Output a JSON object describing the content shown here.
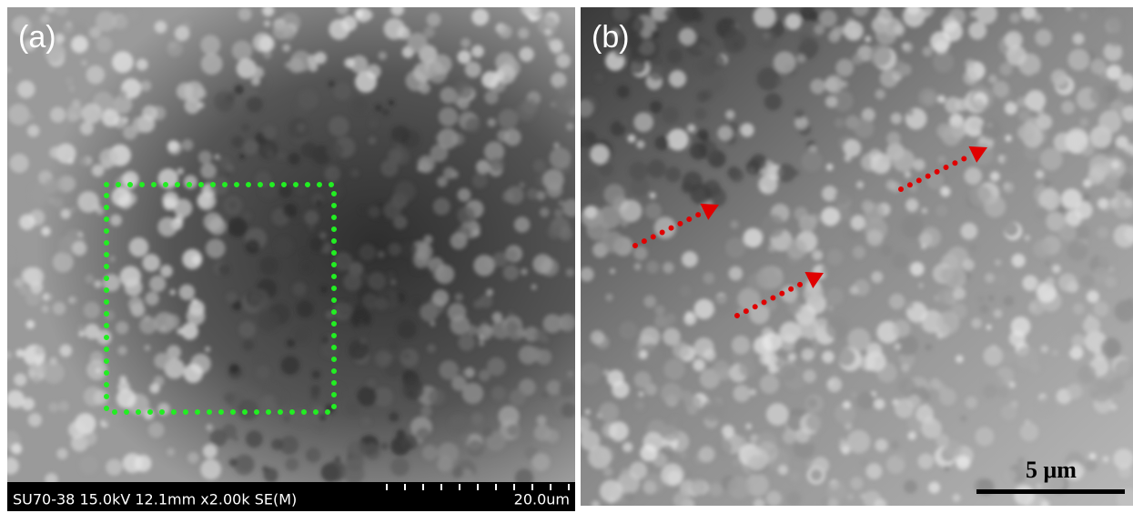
{
  "panels": [
    {
      "label": "(a)",
      "info_bar": {
        "text": "SU70-38 15.0kV 12.1mm x2.00k SE(M)",
        "scale": "20.0um"
      }
    },
    {
      "label": "(b)",
      "scale_bar": "5 μm"
    }
  ]
}
